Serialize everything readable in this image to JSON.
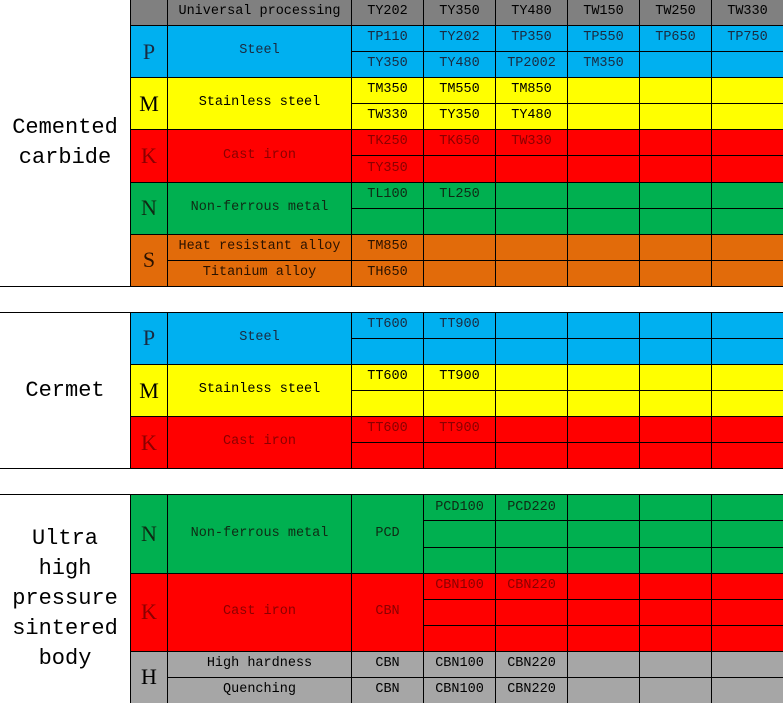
{
  "header": {
    "universal": "Universal processing",
    "grades": [
      "TY202",
      "TY350",
      "TY480",
      "TW150",
      "TW250",
      "TW330"
    ],
    "color": "#808080"
  },
  "sections": [
    {
      "name": "Cemented carbide",
      "groups": [
        {
          "letter": "P",
          "color": "#00B0F0",
          "text_color": "#1a2a40",
          "materials": [
            "Steel"
          ],
          "rows": [
            [
              "TP110",
              "TY202",
              "TP350",
              "TP550",
              "TP650",
              "TP750"
            ],
            [
              "TY350",
              "TY480",
              "TP2002",
              "TM350",
              "",
              ""
            ]
          ]
        },
        {
          "letter": "M",
          "color": "#FFFF00",
          "text_color": "#000000",
          "materials": [
            "Stainless steel"
          ],
          "rows": [
            [
              "TM350",
              "TM550",
              "TM850",
              "",
              "",
              ""
            ],
            [
              "TW330",
              "TY350",
              "TY480",
              "",
              "",
              ""
            ]
          ]
        },
        {
          "letter": "K",
          "color": "#FF0000",
          "text_color": "#8a0000",
          "materials": [
            "Cast iron"
          ],
          "rows": [
            [
              "TK250",
              "TK650",
              "TW330",
              "",
              "",
              ""
            ],
            [
              "TY350",
              "",
              "",
              "",
              "",
              ""
            ]
          ]
        },
        {
          "letter": "N",
          "color": "#00B050",
          "text_color": "#0f2a14",
          "materials": [
            "Non-ferrous metal"
          ],
          "rows": [
            [
              "TL100",
              "TL250",
              "",
              "",
              "",
              ""
            ],
            [
              "",
              "",
              "",
              "",
              "",
              ""
            ]
          ]
        },
        {
          "letter": "S",
          "color": "#E26B0A",
          "text_color": "#2a1200",
          "materials": [
            "Heat resistant alloy",
            "Titanium alloy"
          ],
          "rows": [
            [
              "TM850",
              "",
              "",
              "",
              "",
              ""
            ],
            [
              "TH650",
              "",
              "",
              "",
              "",
              ""
            ]
          ]
        }
      ]
    },
    {
      "name": "Cermet",
      "groups": [
        {
          "letter": "P",
          "color": "#00B0F0",
          "text_color": "#1a2a40",
          "materials": [
            "Steel"
          ],
          "rows": [
            [
              "TT600",
              "TT900",
              "",
              "",
              "",
              ""
            ],
            [
              "",
              "",
              "",
              "",
              "",
              ""
            ]
          ]
        },
        {
          "letter": "M",
          "color": "#FFFF00",
          "text_color": "#000000",
          "materials": [
            "Stainless steel"
          ],
          "rows": [
            [
              "TT600",
              "TT900",
              "",
              "",
              "",
              ""
            ],
            [
              "",
              "",
              "",
              "",
              "",
              ""
            ]
          ]
        },
        {
          "letter": "K",
          "color": "#FF0000",
          "text_color": "#8a0000",
          "materials": [
            "Cast iron"
          ],
          "rows": [
            [
              "TT600",
              "TT900",
              "",
              "",
              "",
              ""
            ],
            [
              "",
              "",
              "",
              "",
              "",
              ""
            ]
          ]
        }
      ]
    },
    {
      "name": "Ultra high pressure sintered body",
      "groups": [
        {
          "letter": "N",
          "color": "#00B050",
          "text_color": "#0f2a14",
          "materials": [
            "Non-ferrous metal"
          ],
          "tool": "PCD",
          "rows": [
            [
              "PCD100",
              "PCD220",
              "",
              "",
              ""
            ],
            [
              "",
              "",
              "",
              "",
              ""
            ],
            [
              "",
              "",
              "",
              "",
              ""
            ]
          ]
        },
        {
          "letter": "K",
          "color": "#FF0000",
          "text_color": "#8a0000",
          "materials": [
            "Cast iron"
          ],
          "tool": "CBN",
          "rows": [
            [
              "CBN100",
              "CBN220",
              "",
              "",
              ""
            ],
            [
              "",
              "",
              "",
              "",
              ""
            ],
            [
              "",
              "",
              "",
              "",
              ""
            ]
          ]
        },
        {
          "letter": "H",
          "color": "#A6A6A6",
          "text_color": "#000000",
          "materials": [
            "High hardness",
            "Quenching"
          ],
          "rows": [
            [
              "CBN",
              "CBN100",
              "CBN220",
              "",
              "",
              ""
            ],
            [
              "CBN",
              "CBN100",
              "CBN220",
              "",
              "",
              ""
            ]
          ]
        }
      ]
    }
  ]
}
